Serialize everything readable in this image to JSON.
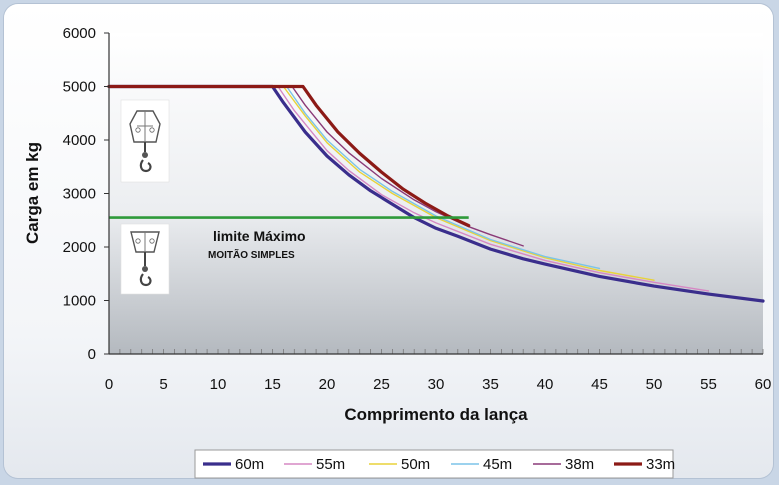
{
  "chart_data": {
    "type": "line",
    "xlabel": "Comprimento da lança",
    "ylabel": "Carga em kg",
    "xlim": [
      0,
      60
    ],
    "ylim": [
      0,
      6000
    ],
    "xticks": [
      0,
      5,
      10,
      15,
      20,
      25,
      30,
      35,
      40,
      45,
      50,
      55,
      60
    ],
    "yticks": [
      0,
      1000,
      2000,
      3000,
      4000,
      5000,
      6000
    ],
    "grid": false,
    "legend_position": "bottom",
    "annotations": {
      "limit_line": {
        "y": 2550,
        "x_end": 33,
        "color": "#2e9a3a"
      },
      "limit_label": "limite Máximo",
      "limit_sublabel": "MOITÃO SIMPLES"
    },
    "series": [
      {
        "name": "60m",
        "color": "#3a2e8c",
        "width": 3.2,
        "x": [
          0,
          15,
          16,
          18,
          20,
          22,
          24,
          26,
          28,
          30,
          32,
          35,
          38,
          40,
          45,
          50,
          55,
          60
        ],
        "y": [
          5000,
          5000,
          4700,
          4150,
          3700,
          3350,
          3050,
          2800,
          2550,
          2350,
          2200,
          1960,
          1780,
          1680,
          1450,
          1270,
          1120,
          990
        ]
      },
      {
        "name": "55m",
        "color": "#d688c4",
        "width": 1.4,
        "x": [
          0,
          15.5,
          17,
          20,
          22,
          25,
          28,
          30,
          35,
          40,
          45,
          50,
          55
        ],
        "y": [
          5000,
          5000,
          4550,
          3800,
          3430,
          2980,
          2640,
          2450,
          2050,
          1750,
          1520,
          1340,
          1180
        ]
      },
      {
        "name": "50m",
        "color": "#e8d23a",
        "width": 1.4,
        "x": [
          0,
          16,
          18,
          20,
          23,
          26,
          30,
          35,
          40,
          45,
          50
        ],
        "y": [
          5000,
          5000,
          4450,
          3950,
          3400,
          3000,
          2550,
          2120,
          1800,
          1560,
          1380
        ]
      },
      {
        "name": "45m",
        "color": "#7cc4e8",
        "width": 1.4,
        "x": [
          0,
          16.3,
          18,
          20,
          23,
          26,
          30,
          35,
          40,
          45
        ],
        "y": [
          5000,
          5000,
          4500,
          4000,
          3450,
          3040,
          2580,
          2140,
          1820,
          1600
        ]
      },
      {
        "name": "38m",
        "color": "#8a3a78",
        "width": 1.4,
        "x": [
          0,
          16.8,
          18,
          20,
          22,
          25,
          28,
          30,
          33,
          35,
          38
        ],
        "y": [
          5000,
          5000,
          4650,
          4150,
          3760,
          3280,
          2880,
          2660,
          2380,
          2230,
          2020
        ]
      },
      {
        "name": "33m",
        "color": "#8c1a16",
        "width": 3.2,
        "x": [
          0,
          17.8,
          19,
          21,
          23,
          25,
          27,
          29,
          31,
          33
        ],
        "y": [
          5000,
          5000,
          4650,
          4150,
          3750,
          3400,
          3080,
          2820,
          2590,
          2400
        ]
      }
    ]
  }
}
